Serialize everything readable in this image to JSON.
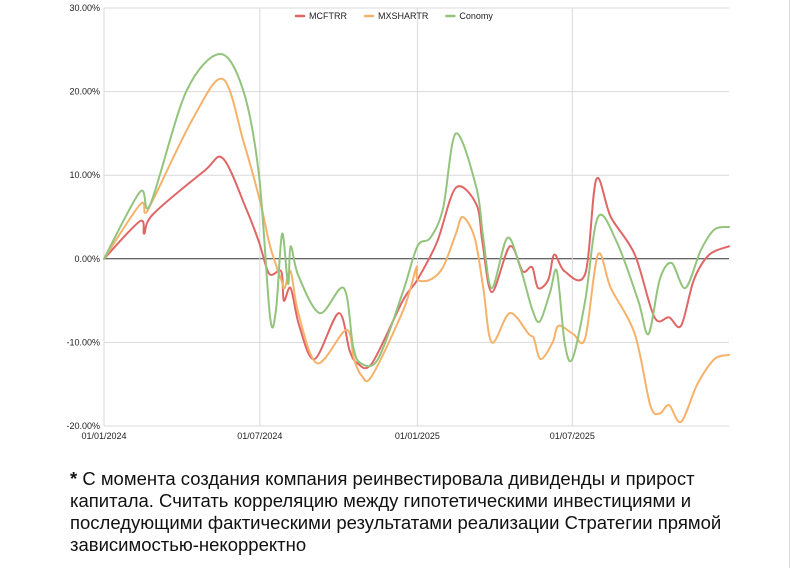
{
  "chart_data": {
    "type": "line",
    "title": "",
    "xlabel": "",
    "ylabel": "",
    "ylim": [
      -20,
      30
    ],
    "xlim": [
      "2024-01-01",
      "2025-12-31"
    ],
    "y_ticks": [
      30,
      20,
      10,
      0,
      -10,
      -20
    ],
    "y_tick_labels": [
      "30.00%",
      "20.00%",
      "10.00%",
      "0.00%",
      "-10.00%",
      "-20.00%"
    ],
    "x_ticks": [
      "2024-01-01",
      "2024-07-01",
      "2025-01-01",
      "2025-07-01"
    ],
    "x_tick_labels": [
      "01/01/2024",
      "01/07/2024",
      "01/01/2025",
      "01/07/2025"
    ],
    "grid": true,
    "legend": "top-center",
    "series": [
      {
        "name": "MCFTRR",
        "color": "#e06666",
        "points": [
          [
            "2024-01-01",
            0
          ],
          [
            "2024-02-12",
            4.5
          ],
          [
            "2024-02-17",
            3.0
          ],
          [
            "2024-02-27",
            5.3
          ],
          [
            "2024-04-27",
            10.5
          ],
          [
            "2024-05-19",
            12.0
          ],
          [
            "2024-06-15",
            6.0
          ],
          [
            "2024-06-30",
            2.0
          ],
          [
            "2024-07-12",
            -1.8
          ],
          [
            "2024-07-26",
            -1.5
          ],
          [
            "2024-07-29",
            -5.0
          ],
          [
            "2024-08-06",
            -3.5
          ],
          [
            "2024-08-16",
            -8.0
          ],
          [
            "2024-09-03",
            -12.0
          ],
          [
            "2024-10-01",
            -6.5
          ],
          [
            "2024-10-14",
            -11.0
          ],
          [
            "2024-10-23",
            -12.5
          ],
          [
            "2024-11-09",
            -12.5
          ],
          [
            "2024-12-15",
            -5.0
          ],
          [
            "2025-01-01",
            -2.5
          ],
          [
            "2025-01-24",
            2.0
          ],
          [
            "2025-02-15",
            8.5
          ],
          [
            "2025-03-11",
            6.5
          ],
          [
            "2025-03-18",
            2.0
          ],
          [
            "2025-03-29",
            -4.0
          ],
          [
            "2025-04-19",
            1.5
          ],
          [
            "2025-05-04",
            -1.5
          ],
          [
            "2025-05-15",
            -1.0
          ],
          [
            "2025-05-22",
            -3.5
          ],
          [
            "2025-06-03",
            -2.5
          ],
          [
            "2025-06-10",
            0.5
          ],
          [
            "2025-06-22",
            -1.5
          ],
          [
            "2025-07-16",
            -1.8
          ],
          [
            "2025-07-29",
            9.5
          ],
          [
            "2025-08-15",
            5.0
          ],
          [
            "2025-09-12",
            0.5
          ],
          [
            "2025-10-05",
            -7.0
          ],
          [
            "2025-10-22",
            -7.0
          ],
          [
            "2025-11-05",
            -8.0
          ],
          [
            "2025-11-20",
            -2.5
          ],
          [
            "2025-12-08",
            0.5
          ],
          [
            "2025-12-31",
            1.5
          ]
        ]
      },
      {
        "name": "MXSHARTR",
        "color": "#f6b26b",
        "points": [
          [
            "2024-01-01",
            0
          ],
          [
            "2024-02-12",
            6.5
          ],
          [
            "2024-02-18",
            5.5
          ],
          [
            "2024-02-27",
            7.0
          ],
          [
            "2024-04-15",
            17.0
          ],
          [
            "2024-05-19",
            21.5
          ],
          [
            "2024-06-12",
            14.0
          ],
          [
            "2024-07-01",
            7.0
          ],
          [
            "2024-07-13",
            1.5
          ],
          [
            "2024-07-26",
            -2.5
          ],
          [
            "2024-07-30",
            -3.5
          ],
          [
            "2024-08-06",
            -1.5
          ],
          [
            "2024-08-15",
            -6.5
          ],
          [
            "2024-09-06",
            -12.5
          ],
          [
            "2024-10-10",
            -8.5
          ],
          [
            "2024-10-19",
            -12.0
          ],
          [
            "2024-10-28",
            -14.0
          ],
          [
            "2024-11-09",
            -14.0
          ],
          [
            "2024-12-16",
            -6.0
          ],
          [
            "2024-12-31",
            -1.0
          ],
          [
            "2025-01-01",
            -2.5
          ],
          [
            "2025-01-16",
            -2.5
          ],
          [
            "2025-01-31",
            -1.0
          ],
          [
            "2025-02-15",
            3.0
          ],
          [
            "2025-02-23",
            5.0
          ],
          [
            "2025-03-09",
            2.5
          ],
          [
            "2025-03-19",
            -3.5
          ],
          [
            "2025-03-29",
            -10.0
          ],
          [
            "2025-04-19",
            -6.5
          ],
          [
            "2025-05-11",
            -9.0
          ],
          [
            "2025-05-17",
            -9.5
          ],
          [
            "2025-05-25",
            -12.0
          ],
          [
            "2025-06-08",
            -10.0
          ],
          [
            "2025-06-15",
            -8.0
          ],
          [
            "2025-07-02",
            -9.0
          ],
          [
            "2025-07-16",
            -9.5
          ],
          [
            "2025-07-31",
            0.5
          ],
          [
            "2025-08-15",
            -3.5
          ],
          [
            "2025-09-12",
            -9.0
          ],
          [
            "2025-09-30",
            -17.5
          ],
          [
            "2025-10-11",
            -18.5
          ],
          [
            "2025-10-22",
            -17.5
          ],
          [
            "2025-11-05",
            -19.5
          ],
          [
            "2025-11-24",
            -15.0
          ],
          [
            "2025-12-14",
            -12.0
          ],
          [
            "2025-12-31",
            -11.5
          ]
        ]
      },
      {
        "name": "Conomy",
        "color": "#93c47d",
        "points": [
          [
            "2024-01-01",
            0
          ],
          [
            "2024-02-12",
            8.0
          ],
          [
            "2024-02-24",
            6.5
          ],
          [
            "2024-04-06",
            20.0
          ],
          [
            "2024-05-16",
            24.5
          ],
          [
            "2024-06-12",
            20.0
          ],
          [
            "2024-06-30",
            10.0
          ],
          [
            "2024-07-13",
            -7.0
          ],
          [
            "2024-07-20",
            -6.0
          ],
          [
            "2024-07-27",
            3.0
          ],
          [
            "2024-08-03",
            -3.0
          ],
          [
            "2024-08-06",
            1.5
          ],
          [
            "2024-08-15",
            -2.0
          ],
          [
            "2024-09-09",
            -6.5
          ],
          [
            "2024-10-07",
            -3.5
          ],
          [
            "2024-10-18",
            -10.5
          ],
          [
            "2024-10-27",
            -12.5
          ],
          [
            "2024-11-16",
            -12.0
          ],
          [
            "2024-12-15",
            -4.0
          ],
          [
            "2025-01-01",
            1.5
          ],
          [
            "2025-01-16",
            2.5
          ],
          [
            "2025-01-31",
            6.0
          ],
          [
            "2025-02-15",
            15.0
          ],
          [
            "2025-03-11",
            8.5
          ],
          [
            "2025-03-19",
            2.5
          ],
          [
            "2025-03-29",
            -3.5
          ],
          [
            "2025-04-16",
            2.5
          ],
          [
            "2025-05-01",
            -1.0
          ],
          [
            "2025-05-15",
            -6.0
          ],
          [
            "2025-05-24",
            -7.5
          ],
          [
            "2025-06-05",
            -4.0
          ],
          [
            "2025-06-13",
            -1.5
          ],
          [
            "2025-06-22",
            -10.0
          ],
          [
            "2025-07-01",
            -12.0
          ],
          [
            "2025-07-16",
            -5.0
          ],
          [
            "2025-07-31",
            5.0
          ],
          [
            "2025-08-22",
            2.0
          ],
          [
            "2025-09-16",
            -5.0
          ],
          [
            "2025-09-28",
            -9.0
          ],
          [
            "2025-10-11",
            -2.5
          ],
          [
            "2025-10-25",
            -0.5
          ],
          [
            "2025-11-10",
            -3.5
          ],
          [
            "2025-11-28",
            1.0
          ],
          [
            "2025-12-14",
            3.5
          ],
          [
            "2025-12-31",
            3.8
          ]
        ]
      }
    ]
  },
  "footnote": {
    "star": "*",
    "text": " С момента создания компания реинвестировала дивиденды и прирост капитала. Считать корреляцию между гипотетическими инвестициями и последующими фактическими результатами реализации Стратегии прямой зависимостью-некорректно"
  }
}
